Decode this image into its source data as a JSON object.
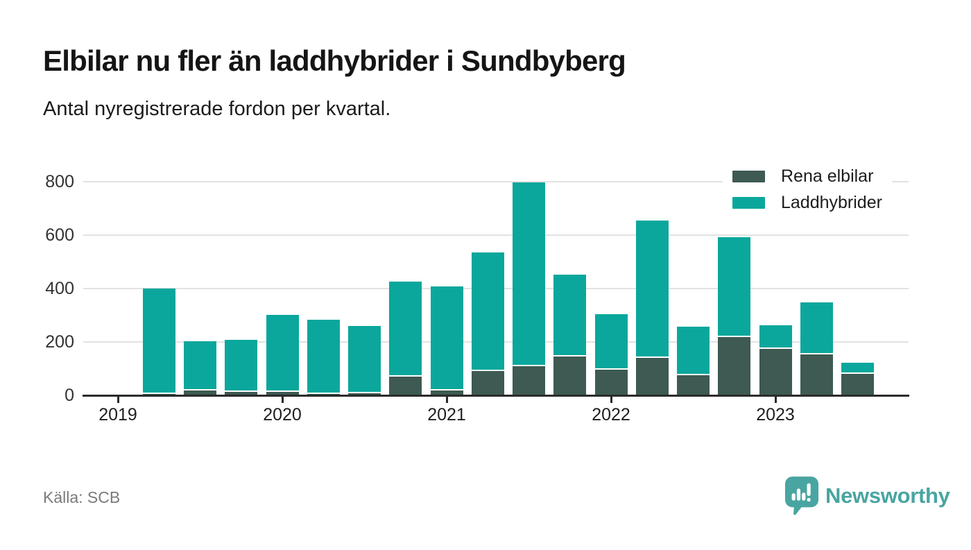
{
  "header": {
    "title": "Elbilar nu fler än laddhybrider i Sundbyberg",
    "subtitle": "Antal nyregistrerade fordon per kvartal."
  },
  "legend": {
    "items": [
      {
        "label": "Rena elbilar",
        "color": "#3e5a53"
      },
      {
        "label": "Laddhybrider",
        "color": "#0ba79c"
      }
    ]
  },
  "chart_data": {
    "type": "bar",
    "stacked": true,
    "title": "Elbilar nu fler än laddhybrider i Sundbyberg",
    "subtitle": "Antal nyregistrerade fordon per kvartal.",
    "xlabel": "",
    "ylabel": "",
    "categories": [
      "2019 Q2",
      "2019 Q3",
      "2019 Q4",
      "2020 Q1",
      "2020 Q2",
      "2020 Q3",
      "2020 Q4",
      "2021 Q1",
      "2021 Q2",
      "2021 Q3",
      "2021 Q4",
      "2022 Q1",
      "2022 Q2",
      "2022 Q3",
      "2022 Q4",
      "2023 Q1",
      "2023 Q2",
      "2023 Q3"
    ],
    "series": [
      {
        "name": "Rena elbilar",
        "color": "#3e5a53",
        "values": [
          5,
          18,
          12,
          12,
          6,
          8,
          70,
          18,
          91,
          108,
          145,
          95,
          140,
          76,
          218,
          174,
          152,
          80
        ]
      },
      {
        "name": "Laddhybrider",
        "color": "#0ba79c",
        "values": [
          390,
          180,
          190,
          283,
          272,
          247,
          350,
          385,
          439,
          684,
          302,
          205,
          510,
          177,
          370,
          83,
          192,
          38
        ]
      }
    ],
    "yticks": [
      0,
      200,
      400,
      600,
      800
    ],
    "ylim": [
      0,
      830
    ],
    "xticks": [
      {
        "label": "2019",
        "quarter_index": 0
      },
      {
        "label": "2020",
        "quarter_index": 4
      },
      {
        "label": "2021",
        "quarter_index": 8
      },
      {
        "label": "2022",
        "quarter_index": 12
      },
      {
        "label": "2023",
        "quarter_index": 16
      }
    ],
    "grid": "horizontal",
    "legend_position": "top-right"
  },
  "footer": {
    "source": "Källa: SCB",
    "brand": "Newsworthy"
  },
  "colors": {
    "elbilar": "#3e5a53",
    "laddhybrid": "#0ba79c",
    "brand_teal": "#49a5a1",
    "grid": "#e2e2e2",
    "axis": "#2b2b2b"
  }
}
